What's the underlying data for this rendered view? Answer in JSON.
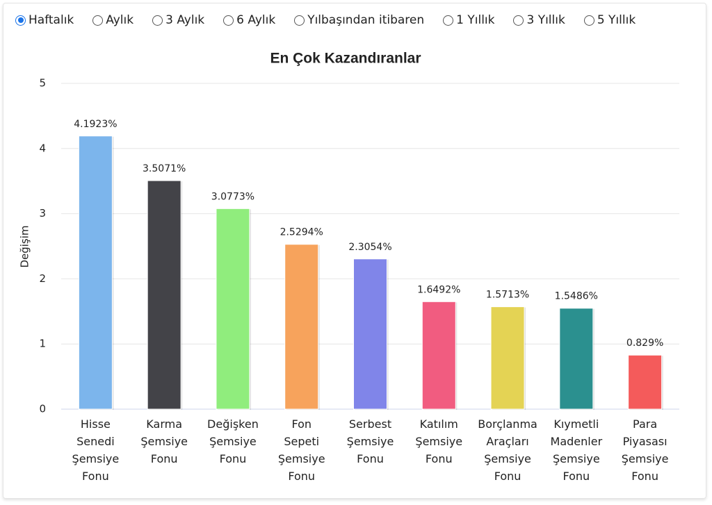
{
  "period_options": [
    "Haftalık",
    "Aylık",
    "3 Aylık",
    "6 Aylık",
    "Yılbaşından itibaren",
    "1 Yıllık",
    "3 Yıllık",
    "5 Yıllık"
  ],
  "selected": 0,
  "chart_data": {
    "type": "bar",
    "title": "En Çok Kazandıranlar",
    "y_label": "Değişim",
    "categories": [
      "Hisse Senedi Şemsiye Fonu",
      "Karma Şemsiye Fonu",
      "Değişken Şemsiye Fonu",
      "Fon Sepeti Şemsiye Fonu",
      "Serbest Şemsiye Fonu",
      "Katılım Şemsiye Fonu",
      "Borçlanma Araçları Şemsiye Fonu",
      "Kıymetli Madenler Şemsiye Fonu",
      "Para Piyasası Şemsiye Fonu"
    ],
    "values": [
      4.1923,
      3.5071,
      3.0773,
      2.5294,
      2.3054,
      1.6492,
      1.5713,
      1.5486,
      0.829
    ],
    "value_labels": [
      "4.1923%",
      "3.5071%",
      "3.0773%",
      "2.5294%",
      "2.3054%",
      "1.6492%",
      "1.5713%",
      "1.5486%",
      "0.829%"
    ],
    "colors": [
      "#7cb5ec",
      "#434348",
      "#90ed7d",
      "#f7a35c",
      "#8085e9",
      "#f15c80",
      "#e4d354",
      "#2b908f",
      "#f45b5b"
    ],
    "ylim": [
      0,
      5
    ],
    "yticks": [
      0,
      1,
      2,
      3,
      4,
      5
    ],
    "grid": true
  }
}
